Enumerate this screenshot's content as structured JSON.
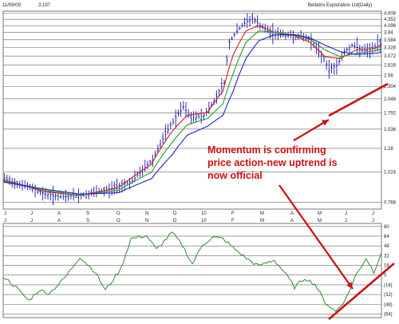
{
  "header": {
    "date": "11/09/09",
    "price": "3.197",
    "title": "Bellatrix Exploration Ltd(Daily)"
  },
  "colors": {
    "price_bars": "#1a1aa8",
    "ema_fast": "#d42020",
    "ema_mid": "#2a9a2a",
    "ema_slow": "#2020c8",
    "oscillator": "#2e8b2e",
    "annotation": "#cc1010",
    "grid": "#666666"
  },
  "annotation": {
    "lines": [
      "Momentum is confirming",
      "price action-new uptrend is",
      "now official"
    ]
  },
  "chart_data": [
    {
      "type": "ohlc",
      "title": "Bellatrix Exploration Ltd(Daily)",
      "y_scale": "log",
      "ylim": [
        0.72,
        4.7
      ],
      "y_ticks": [
        "4.608",
        "4.352",
        "4.096",
        "3.84",
        "3.584",
        "3.328",
        "3.072",
        "2.816",
        "2.56",
        "2.304",
        "2.048",
        "1.792",
        "1.536",
        "1.28",
        "1.024",
        "0.768"
      ],
      "x_labels": [
        "J",
        "J",
        "A",
        "S",
        "O",
        "N",
        "D",
        "10",
        "F",
        "M",
        "A",
        "M",
        "J",
        "J"
      ],
      "last_price": 3.197,
      "price_path": [
        [
          0,
          0.96
        ],
        [
          8,
          0.9
        ],
        [
          16,
          0.83
        ],
        [
          22,
          0.81
        ],
        [
          30,
          0.82
        ],
        [
          40,
          0.86
        ],
        [
          50,
          0.94
        ],
        [
          58,
          1.15
        ],
        [
          62,
          1.4
        ],
        [
          66,
          1.65
        ],
        [
          70,
          1.9
        ],
        [
          73,
          1.7
        ],
        [
          78,
          1.75
        ],
        [
          82,
          2.0
        ],
        [
          86,
          2.4
        ],
        [
          88,
          3.5
        ],
        [
          91,
          3.9
        ],
        [
          94,
          4.2
        ],
        [
          97,
          4.4
        ],
        [
          100,
          4.1
        ],
        [
          104,
          3.85
        ],
        [
          110,
          3.75
        ],
        [
          116,
          3.7
        ],
        [
          120,
          3.6
        ],
        [
          122,
          3.3
        ],
        [
          125,
          3.0
        ],
        [
          127,
          2.7
        ],
        [
          130,
          2.8
        ],
        [
          133,
          3.2
        ],
        [
          136,
          3.4
        ],
        [
          139,
          3.3
        ],
        [
          142,
          3.2
        ],
        [
          145,
          3.35
        ],
        [
          148,
          3.5
        ]
      ],
      "series": [
        {
          "name": "",
          "color": "#d42020",
          "values_path": [
            [
              0,
              0.95
            ],
            [
              16,
              0.85
            ],
            [
              30,
              0.82
            ],
            [
              45,
              0.88
            ],
            [
              58,
              1.1
            ],
            [
              66,
              1.5
            ],
            [
              72,
              1.75
            ],
            [
              80,
              1.8
            ],
            [
              86,
              2.2
            ],
            [
              90,
              3.1
            ],
            [
              95,
              3.9
            ],
            [
              100,
              4.1
            ],
            [
              106,
              3.85
            ],
            [
              114,
              3.72
            ],
            [
              120,
              3.5
            ],
            [
              126,
              3.05
            ],
            [
              132,
              3.0
            ],
            [
              138,
              3.25
            ],
            [
              145,
              3.3
            ],
            [
              148,
              3.4
            ]
          ]
        },
        {
          "name": "",
          "color": "#2a9a2a",
          "values_path": [
            [
              0,
              0.94
            ],
            [
              16,
              0.86
            ],
            [
              30,
              0.82
            ],
            [
              45,
              0.86
            ],
            [
              58,
              1.02
            ],
            [
              66,
              1.35
            ],
            [
              72,
              1.6
            ],
            [
              80,
              1.7
            ],
            [
              86,
              1.95
            ],
            [
              90,
              2.6
            ],
            [
              95,
              3.5
            ],
            [
              100,
              3.9
            ],
            [
              106,
              3.85
            ],
            [
              114,
              3.75
            ],
            [
              120,
              3.6
            ],
            [
              126,
              3.25
            ],
            [
              132,
              3.05
            ],
            [
              138,
              3.15
            ],
            [
              145,
              3.22
            ],
            [
              148,
              3.28
            ]
          ]
        },
        {
          "name": "",
          "color": "#2020c8",
          "values_path": [
            [
              0,
              0.93
            ],
            [
              16,
              0.87
            ],
            [
              30,
              0.83
            ],
            [
              45,
              0.84
            ],
            [
              58,
              0.96
            ],
            [
              66,
              1.2
            ],
            [
              72,
              1.45
            ],
            [
              80,
              1.58
            ],
            [
              86,
              1.75
            ],
            [
              90,
              2.2
            ],
            [
              95,
              3.0
            ],
            [
              100,
              3.55
            ],
            [
              106,
              3.75
            ],
            [
              114,
              3.76
            ],
            [
              120,
              3.65
            ],
            [
              126,
              3.4
            ],
            [
              132,
              3.2
            ],
            [
              138,
              3.12
            ],
            [
              145,
              3.15
            ],
            [
              148,
              3.18
            ]
          ]
        }
      ]
    },
    {
      "type": "line",
      "title": "",
      "ylim": [
        -70,
        85
      ],
      "y_ticks": [
        "80",
        "64",
        "48",
        "32",
        "16",
        "0",
        "(16)",
        "(32)",
        "(48)",
        "(64)"
      ],
      "x_labels": [
        "J",
        "J",
        "A",
        "S",
        "O",
        "N",
        "D",
        "10",
        "F",
        "M",
        "A",
        "M",
        "J",
        "J"
      ],
      "series": [
        {
          "name": "",
          "color": "#2e8b2e",
          "values_path": [
            [
              0,
              -2
            ],
            [
              5,
              -20
            ],
            [
              10,
              -42
            ],
            [
              14,
              -25
            ],
            [
              18,
              -30
            ],
            [
              24,
              -5
            ],
            [
              30,
              30
            ],
            [
              36,
              5
            ],
            [
              40,
              -25
            ],
            [
              46,
              10
            ],
            [
              50,
              60
            ],
            [
              56,
              65
            ],
            [
              60,
              42
            ],
            [
              66,
              70
            ],
            [
              70,
              50
            ],
            [
              74,
              18
            ],
            [
              78,
              50
            ],
            [
              82,
              62
            ],
            [
              86,
              60
            ],
            [
              90,
              45
            ],
            [
              96,
              25
            ],
            [
              100,
              15
            ],
            [
              106,
              25
            ],
            [
              110,
              5
            ],
            [
              114,
              -20
            ],
            [
              118,
              -5
            ],
            [
              122,
              -15
            ],
            [
              126,
              -45
            ],
            [
              130,
              -60
            ],
            [
              134,
              -40
            ],
            [
              138,
              0
            ],
            [
              142,
              28
            ],
            [
              145,
              5
            ],
            [
              148,
              38
            ]
          ]
        }
      ]
    }
  ]
}
